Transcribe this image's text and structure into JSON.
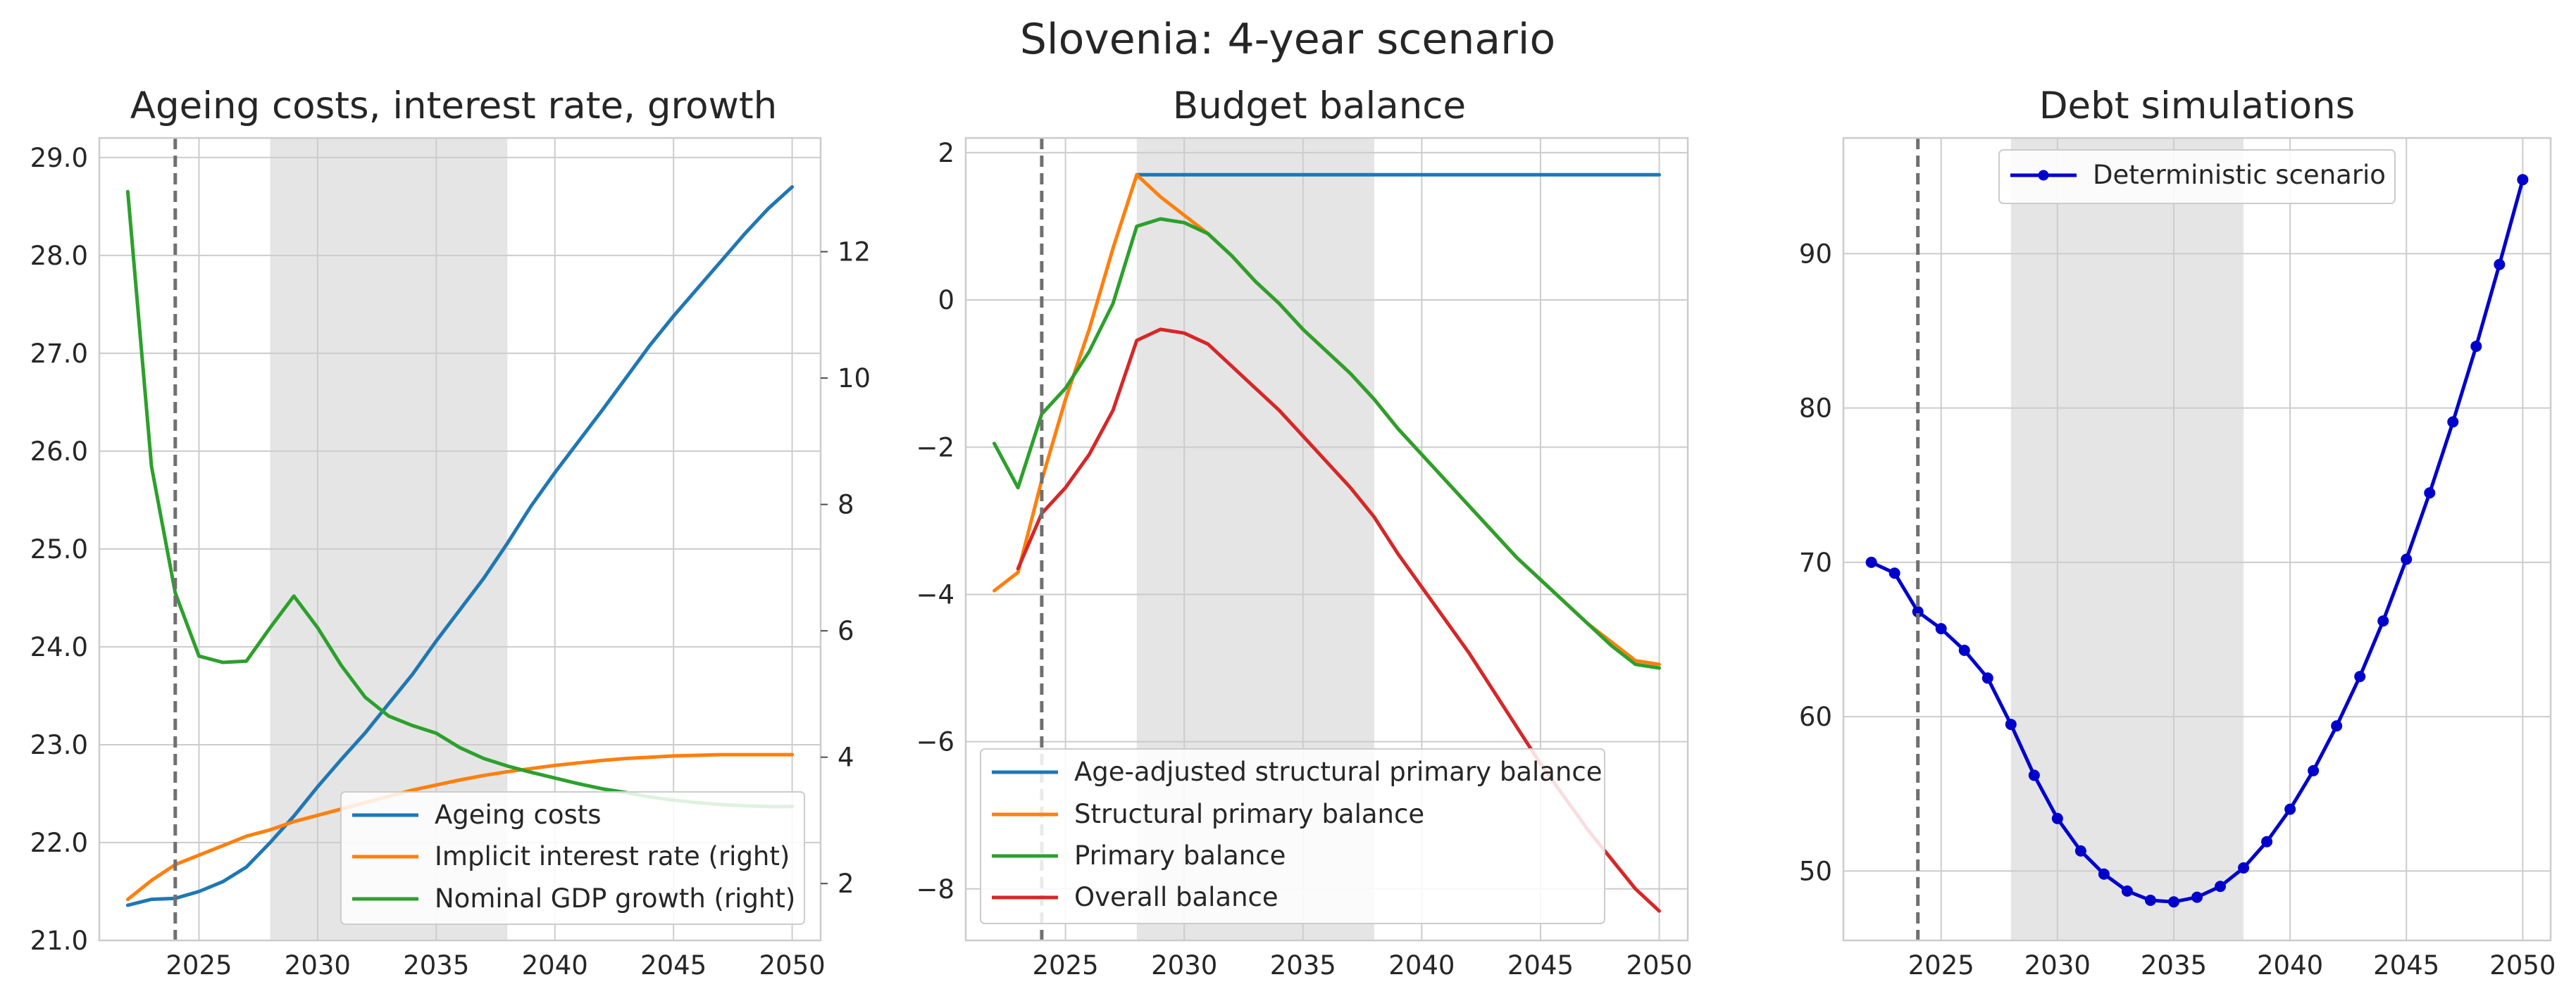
{
  "suptitle": "Slovenia: 4-year scenario",
  "colors": {
    "blue": "#1f77b4",
    "orange": "#ff7f0e",
    "green": "#2ca02c",
    "red": "#d62728",
    "debt": "#0000cd",
    "grid": "#cccccc",
    "shade": "#e5e5e5",
    "vline": "#707070"
  },
  "chart_data": [
    {
      "type": "line",
      "title": "Ageing costs, interest rate, growth",
      "xlabel": "",
      "ylabel": "",
      "xlim": [
        2020.8,
        2051.2
      ],
      "ylim": [
        21.0,
        29.2
      ],
      "y2lim": [
        1.1,
        13.8
      ],
      "xticks": [
        "2025",
        "2030",
        "2035",
        "2040",
        "2045",
        "2050"
      ],
      "yticks": [
        "21.0",
        "22.0",
        "23.0",
        "24.0",
        "25.0",
        "26.0",
        "27.0",
        "28.0",
        "29.0"
      ],
      "y2ticks": [
        "2",
        "4",
        "6",
        "8",
        "10",
        "12"
      ],
      "shaded_region": [
        2028,
        2038
      ],
      "vline": 2024,
      "grid": true,
      "legend_position": "lower-right",
      "x": [
        2022,
        2023,
        2024,
        2025,
        2026,
        2027,
        2028,
        2029,
        2030,
        2031,
        2032,
        2033,
        2034,
        2035,
        2036,
        2037,
        2038,
        2039,
        2040,
        2041,
        2042,
        2043,
        2044,
        2045,
        2046,
        2047,
        2048,
        2049,
        2050
      ],
      "series": [
        {
          "name": "Ageing costs",
          "axis": "left",
          "color": "#1f77b4",
          "values": [
            21.36,
            21.42,
            21.43,
            21.5,
            21.6,
            21.75,
            22.0,
            22.27,
            22.57,
            22.85,
            23.12,
            23.42,
            23.72,
            24.06,
            24.38,
            24.7,
            25.06,
            25.44,
            25.78,
            26.1,
            26.42,
            26.75,
            27.08,
            27.38,
            27.66,
            27.94,
            28.22,
            28.48,
            28.7
          ]
        },
        {
          "name": "Implicit interest rate (right)",
          "axis": "right",
          "color": "#ff7f0e",
          "values": [
            1.75,
            2.05,
            2.3,
            2.45,
            2.6,
            2.75,
            2.85,
            2.98,
            3.08,
            3.18,
            3.28,
            3.38,
            3.48,
            3.56,
            3.64,
            3.71,
            3.77,
            3.82,
            3.87,
            3.91,
            3.95,
            3.98,
            4.0,
            4.02,
            4.03,
            4.04,
            4.04,
            4.04,
            4.04
          ]
        },
        {
          "name": "Nominal GDP growth (right)",
          "axis": "right",
          "color": "#2ca02c",
          "values": [
            12.95,
            8.6,
            6.6,
            5.6,
            5.5,
            5.52,
            6.05,
            6.55,
            6.05,
            5.45,
            4.95,
            4.65,
            4.5,
            4.38,
            4.15,
            3.98,
            3.86,
            3.76,
            3.67,
            3.58,
            3.5,
            3.44,
            3.37,
            3.32,
            3.28,
            3.25,
            3.23,
            3.22,
            3.22
          ]
        }
      ]
    },
    {
      "type": "line",
      "title": "Budget balance",
      "xlabel": "",
      "ylabel": "",
      "xlim": [
        2020.8,
        2051.2
      ],
      "ylim": [
        -8.7,
        2.2
      ],
      "xticks": [
        "2025",
        "2030",
        "2035",
        "2040",
        "2045",
        "2050"
      ],
      "yticks": [
        "−8",
        "−6",
        "−4",
        "−2",
        "0",
        "2"
      ],
      "shaded_region": [
        2028,
        2038
      ],
      "vline": 2024,
      "grid": true,
      "legend_position": "lower-left",
      "x": [
        2022,
        2023,
        2024,
        2025,
        2026,
        2027,
        2028,
        2029,
        2030,
        2031,
        2032,
        2033,
        2034,
        2035,
        2036,
        2037,
        2038,
        2039,
        2040,
        2041,
        2042,
        2043,
        2044,
        2045,
        2046,
        2047,
        2048,
        2049,
        2050
      ],
      "series": [
        {
          "name": "Age-adjusted structural primary balance",
          "color": "#1f77b4",
          "start": 6,
          "values": [
            null,
            null,
            null,
            null,
            null,
            null,
            1.7,
            1.7,
            1.7,
            1.7,
            1.7,
            1.7,
            1.7,
            1.7,
            1.7,
            1.7,
            1.7,
            1.7,
            1.7,
            1.7,
            1.7,
            1.7,
            1.7,
            1.7,
            1.7,
            1.7,
            1.7,
            1.7,
            1.7
          ]
        },
        {
          "name": "Structural primary balance",
          "color": "#ff7f0e",
          "values": [
            -3.95,
            -3.7,
            -2.45,
            -1.35,
            -0.4,
            0.7,
            1.7,
            1.4,
            1.15,
            0.9,
            0.6,
            0.25,
            -0.05,
            -0.4,
            -0.7,
            -1.0,
            -1.35,
            -1.75,
            -2.1,
            -2.45,
            -2.8,
            -3.15,
            -3.5,
            -3.8,
            -4.1,
            -4.4,
            -4.65,
            -4.9,
            -4.95
          ]
        },
        {
          "name": "Primary balance",
          "color": "#2ca02c",
          "values": [
            -1.95,
            -2.55,
            -1.55,
            -1.2,
            -0.7,
            -0.05,
            1.0,
            1.1,
            1.05,
            0.9,
            0.6,
            0.25,
            -0.05,
            -0.4,
            -0.7,
            -1.0,
            -1.35,
            -1.75,
            -2.1,
            -2.45,
            -2.8,
            -3.15,
            -3.5,
            -3.8,
            -4.1,
            -4.4,
            -4.7,
            -4.95,
            -5.0
          ]
        },
        {
          "name": "Overall balance",
          "color": "#d62728",
          "start": 1,
          "values": [
            null,
            -3.65,
            -2.9,
            -2.55,
            -2.1,
            -1.5,
            -0.55,
            -0.4,
            -0.45,
            -0.6,
            -0.9,
            -1.2,
            -1.5,
            -1.85,
            -2.2,
            -2.55,
            -2.95,
            -3.45,
            -3.9,
            -4.35,
            -4.8,
            -5.3,
            -5.8,
            -6.3,
            -6.75,
            -7.2,
            -7.6,
            -8.0,
            -8.3
          ]
        }
      ]
    },
    {
      "type": "line",
      "title": "Debt simulations",
      "xlabel": "",
      "ylabel": "",
      "xlim": [
        2020.8,
        2051.2
      ],
      "ylim": [
        45.5,
        97.5
      ],
      "xticks": [
        "2025",
        "2030",
        "2035",
        "2040",
        "2045",
        "2050"
      ],
      "yticks": [
        "50",
        "60",
        "70",
        "80",
        "90"
      ],
      "shaded_region": [
        2028,
        2038
      ],
      "vline": 2024,
      "grid": true,
      "legend_position": "upper-center",
      "x": [
        2022,
        2023,
        2024,
        2025,
        2026,
        2027,
        2028,
        2029,
        2030,
        2031,
        2032,
        2033,
        2034,
        2035,
        2036,
        2037,
        2038,
        2039,
        2040,
        2041,
        2042,
        2043,
        2044,
        2045,
        2046,
        2047,
        2048,
        2049,
        2050
      ],
      "series": [
        {
          "name": "Deterministic scenario",
          "color": "#0000cd",
          "markers": true,
          "values": [
            70.0,
            69.3,
            66.8,
            65.7,
            64.3,
            62.5,
            59.5,
            56.2,
            53.4,
            51.3,
            49.8,
            48.7,
            48.1,
            48.0,
            48.3,
            49.0,
            50.2,
            51.9,
            54.0,
            56.5,
            59.4,
            62.6,
            66.2,
            70.2,
            74.5,
            79.1,
            84.0,
            89.3,
            94.8
          ]
        }
      ]
    }
  ]
}
